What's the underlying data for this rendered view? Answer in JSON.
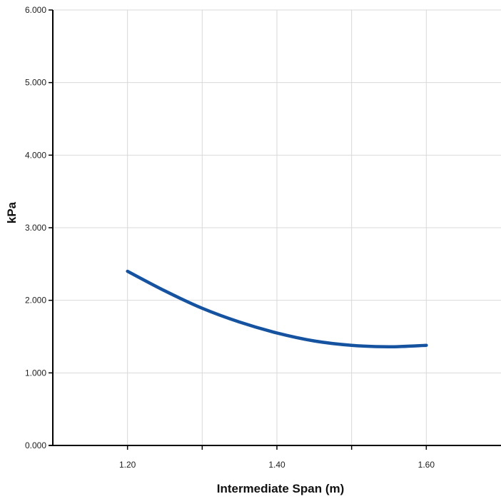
{
  "chart_data": {
    "type": "line",
    "title": "",
    "xlabel": "Intermediate Span (m)",
    "ylabel": "kPa",
    "xlim": [
      1.1,
      1.7
    ],
    "ylim": [
      0,
      6
    ],
    "x_ticks": [
      1.2,
      1.4,
      1.6
    ],
    "x_tick_labels": [
      "1.20",
      "1.40",
      "1.60"
    ],
    "y_ticks": [
      0,
      1,
      2,
      3,
      4,
      5,
      6
    ],
    "y_tick_labels": [
      "0.000",
      "1.000",
      "2.000",
      "3.000",
      "4.000",
      "5.000",
      "6.000"
    ],
    "x_grid": [
      1.2,
      1.3,
      1.4,
      1.5,
      1.6
    ],
    "grid": true,
    "series": [
      {
        "color": "#1553a0",
        "x": [
          1.2,
          1.25,
          1.3,
          1.35,
          1.4,
          1.45,
          1.5,
          1.55,
          1.6
        ],
        "y": [
          2.4,
          2.13,
          1.89,
          1.7,
          1.55,
          1.44,
          1.38,
          1.36,
          1.38
        ]
      }
    ]
  }
}
